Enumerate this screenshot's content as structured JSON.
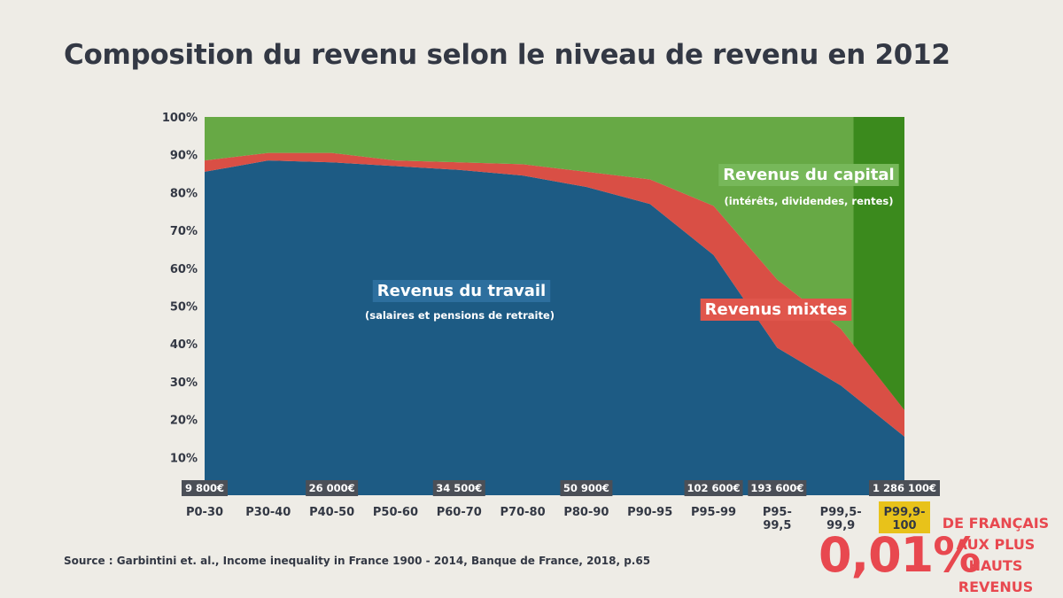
{
  "title": "Composition du revenu selon le niveau de revenu en 2012",
  "source": "Source : Garbintini et. al., Income inequality in France 1900 - 2014, Banque de France, 2018, p.65",
  "highlight": {
    "value": "0,01%",
    "text_lines": [
      "DE FRANÇAIS",
      "AUX PLUS HAUTS",
      "REVENUS"
    ]
  },
  "colors": {
    "travail": "#1d5b84",
    "mixtes": "#d94f45",
    "capital": "#67a945",
    "capital_top": "#3b8a1d",
    "label_travail_bg": "#2d6f9e",
    "label_mixtes_bg": "#e0564c",
    "label_capital_bg": "#77b85a",
    "highlight_box": "#e8c21a",
    "amount_box": "#4b4f57"
  },
  "chart_data": {
    "type": "area",
    "stacked": true,
    "x": [
      "P0-30",
      "P30-40",
      "P40-50",
      "P50-60",
      "P60-70",
      "P70-80",
      "P80-90",
      "P90-95",
      "P95-99",
      "P95-99,5",
      "P99,5-99,9",
      "P99,9-100"
    ],
    "x_tick_lines": [
      [
        "P0-30"
      ],
      [
        "P30-40"
      ],
      [
        "P40-50"
      ],
      [
        "P50-60"
      ],
      [
        "P60-70"
      ],
      [
        "P70-80"
      ],
      [
        "P80-90"
      ],
      [
        "P90-95"
      ],
      [
        "P95-99"
      ],
      [
        "P95-",
        "99,5"
      ],
      [
        "P99,5-",
        "99,9"
      ],
      [
        "P99,9-",
        "100"
      ]
    ],
    "highlight_index": 11,
    "series": [
      {
        "name": "Revenus du travail",
        "values": [
          85.5,
          88.5,
          88.0,
          87.0,
          86.0,
          84.5,
          81.5,
          77.0,
          63.5,
          39.0,
          29.0,
          15.5
        ]
      },
      {
        "name": "Revenus mixtes",
        "values": [
          3.0,
          2.0,
          2.5,
          1.5,
          2.0,
          3.0,
          4.0,
          6.5,
          13.0,
          18.0,
          15.0,
          7.0
        ]
      },
      {
        "name": "Revenus du capital",
        "values": [
          11.5,
          9.5,
          9.5,
          11.5,
          12.0,
          12.5,
          14.5,
          16.5,
          23.5,
          43.0,
          56.0,
          77.5
        ]
      }
    ],
    "series_sublabels": {
      "travail": "(salaires et pensions de retraite)",
      "capital": "(intérêts, dividendes, rentes)"
    },
    "ylim": [
      0,
      100
    ],
    "y_ticks": [
      "10%",
      "20%",
      "30%",
      "40%",
      "50%",
      "60%",
      "70%",
      "80%",
      "90%",
      "100%"
    ],
    "income_labels": [
      {
        "index": 0,
        "text": "9 800€"
      },
      {
        "index": 2,
        "text": "26 000€"
      },
      {
        "index": 4,
        "text": "34 500€"
      },
      {
        "index": 6,
        "text": "50 900€"
      },
      {
        "index": 8,
        "text": "102 600€"
      },
      {
        "index": 9,
        "text": "193 600€"
      },
      {
        "index": 11,
        "text": "1 286 100€"
      }
    ],
    "grid": false,
    "legend": "inline-labels"
  }
}
